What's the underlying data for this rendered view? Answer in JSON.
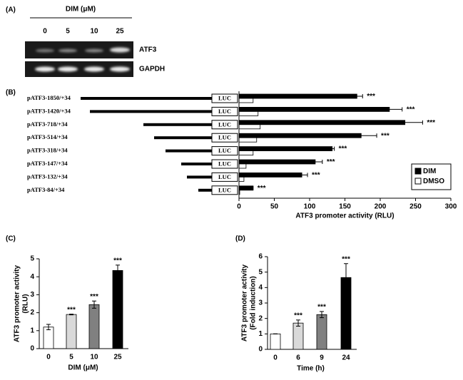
{
  "panel_a": {
    "label": "(A)",
    "title": "DIM (μM)",
    "lanes": [
      "0",
      "5",
      "10",
      "25"
    ],
    "bands": [
      "ATF3",
      "GAPDH"
    ]
  },
  "chart_data": [
    {
      "type": "hbar",
      "label": "(B)",
      "categories": [
        "pATF3-1850/+34",
        "pATF3-1420/+34",
        "pATF3-718/+34",
        "pATF3-514/+34",
        "pATF3-318/+34",
        "pATF3-147/+34",
        "pATF3-132/+34",
        "pATF3-84/+34"
      ],
      "insert": "LUC",
      "series": [
        {
          "name": "DIM",
          "color": "#000000",
          "values": [
            167,
            213,
            235,
            173,
            132,
            108,
            89,
            20
          ],
          "errors": [
            8,
            18,
            25,
            22,
            3,
            10,
            8,
            0
          ],
          "annotations": [
            "***",
            "***",
            "***",
            "***",
            "***",
            "***",
            "***",
            "***"
          ]
        },
        {
          "name": "DMSO",
          "color": "#ffffff",
          "values": [
            20,
            27,
            30,
            25,
            20,
            10,
            7,
            1
          ]
        }
      ],
      "xlabel": "ATF3 promoter activity (RLU)",
      "xlim": [
        0,
        300
      ],
      "xticks": [
        0,
        50,
        100,
        150,
        200,
        250,
        300
      ],
      "legend": "lower right"
    },
    {
      "type": "bar",
      "label": "(C)",
      "categories": [
        "0",
        "5",
        "10",
        "25"
      ],
      "values": [
        1.2,
        1.9,
        2.45,
        4.35
      ],
      "errors": [
        0.15,
        0.02,
        0.2,
        0.3
      ],
      "colors": [
        "#ffffff",
        "#d9d9d9",
        "#808080",
        "#000000"
      ],
      "annotations": [
        null,
        "***",
        "***",
        "***"
      ],
      "ylabel": [
        "ATF3 promoter activity",
        "(RLU)"
      ],
      "xlabel": "DIM (μM)",
      "ylim": [
        0,
        5
      ],
      "yticks": [
        0,
        1,
        2,
        3,
        4,
        5
      ]
    },
    {
      "type": "bar",
      "label": "(D)",
      "categories": [
        "0",
        "6",
        "9",
        "24"
      ],
      "values": [
        1.0,
        1.7,
        2.25,
        4.65
      ],
      "errors": [
        0,
        0.2,
        0.2,
        0.9
      ],
      "colors": [
        "#ffffff",
        "#d9d9d9",
        "#808080",
        "#000000"
      ],
      "annotations": [
        null,
        "***",
        "***",
        "***"
      ],
      "ylabel": [
        "ATF3 promoter activity",
        "(Fold induction)"
      ],
      "xlabel": "Time (h)",
      "ylim": [
        0,
        6
      ],
      "yticks": [
        0,
        1,
        2,
        3,
        4,
        5,
        6
      ]
    }
  ]
}
